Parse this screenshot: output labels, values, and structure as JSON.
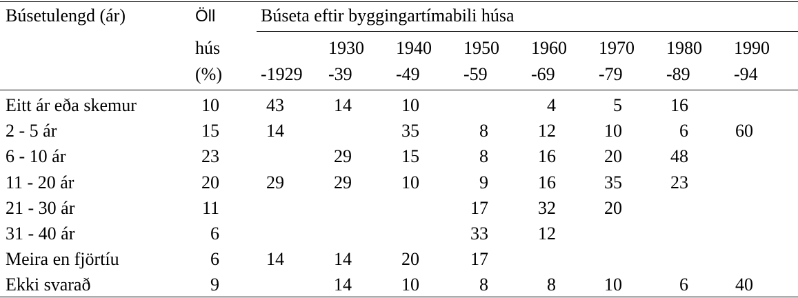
{
  "header": {
    "col0": "Búsetulengd (ár)",
    "all_line1": "Öll",
    "all_line2": "hús",
    "all_line3": "(%)",
    "group_title": "Búseta eftir byggingartímabili húsa",
    "periods_top": [
      "",
      "1930",
      "1940",
      "1950",
      "1960",
      "1970",
      "1980",
      "1990"
    ],
    "periods_bottom": [
      "-1929",
      "-39",
      "-49",
      "-59",
      "-69",
      "-79",
      "-89",
      "-94"
    ]
  },
  "rows": [
    {
      "label": "Eitt ár eða skemur",
      "all": "10",
      "vals": [
        "43",
        "14",
        "10",
        "",
        "4",
        "5",
        "16",
        ""
      ]
    },
    {
      "label": "2  -  5 ár",
      "all": "15",
      "vals": [
        "14",
        "",
        "35",
        "8",
        "12",
        "10",
        "6",
        "60"
      ]
    },
    {
      "label": "6  -  10 ár",
      "all": "23",
      "vals": [
        "",
        "29",
        "15",
        "8",
        "16",
        "20",
        "48",
        ""
      ]
    },
    {
      "label": "11  -  20 ár",
      "all": "20",
      "vals": [
        "29",
        "29",
        "10",
        "9",
        "16",
        "35",
        "23",
        ""
      ]
    },
    {
      "label": "21  -  30 ár",
      "all": "11",
      "vals": [
        "",
        "",
        "",
        "17",
        "32",
        "20",
        "",
        ""
      ]
    },
    {
      "label": "31  -  40 ár",
      "all": "6",
      "vals": [
        "",
        "",
        "",
        "33",
        "12",
        "",
        "",
        ""
      ]
    },
    {
      "label": "Meira en fjörtíu",
      "all": "6",
      "vals": [
        "14",
        "14",
        "20",
        "17",
        "",
        "",
        "",
        ""
      ]
    },
    {
      "label": "Ekki svarað",
      "all": "9",
      "vals": [
        "",
        "14",
        "10",
        "8",
        "8",
        "10",
        "6",
        "40"
      ]
    }
  ]
}
